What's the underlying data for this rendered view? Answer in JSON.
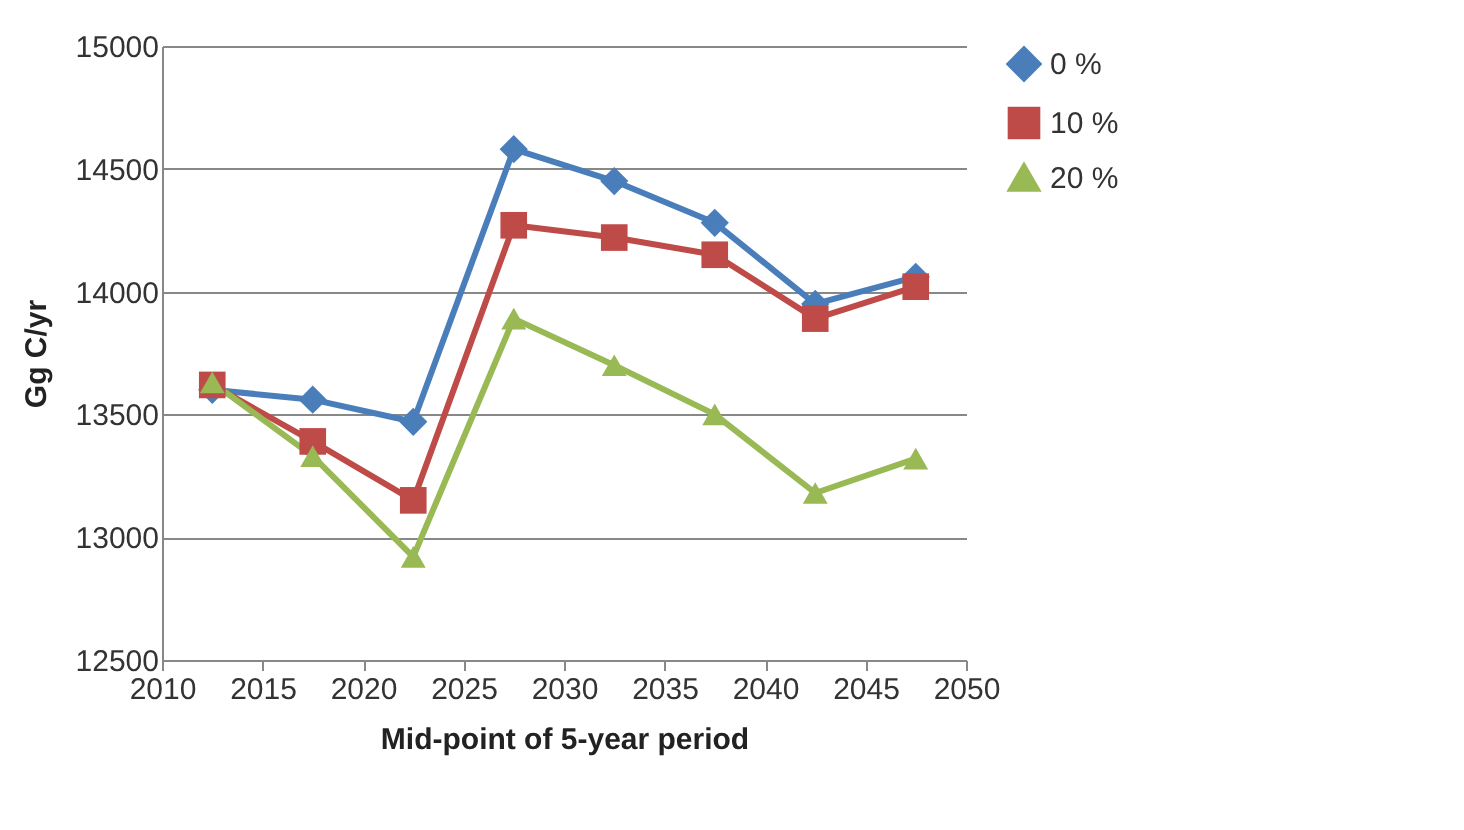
{
  "chart_data": {
    "type": "line",
    "xlabel": "Mid-point of 5-year period",
    "ylabel": "Gg C/yr",
    "x": [
      2012.5,
      2017.5,
      2022.5,
      2027.5,
      2032.5,
      2037.5,
      2042.5,
      2047.5
    ],
    "series": [
      {
        "name": "0 %",
        "color": "#4a7ebb",
        "marker": "diamond",
        "values": [
          13600,
          13560,
          13470,
          14580,
          14450,
          14280,
          13950,
          14060
        ]
      },
      {
        "name": "10 %",
        "color": "#be4b48",
        "marker": "square",
        "values": [
          13620,
          13390,
          13150,
          14270,
          14220,
          14150,
          13890,
          14020
        ]
      },
      {
        "name": "20 %",
        "color": "#98b954",
        "marker": "triangle",
        "values": [
          13630,
          13330,
          12920,
          13890,
          13700,
          13500,
          13180,
          13320
        ]
      }
    ],
    "xlim": [
      2010,
      2050
    ],
    "xticks": [
      2010,
      2015,
      2020,
      2025,
      2030,
      2035,
      2040,
      2045,
      2050
    ],
    "ylim": [
      12500,
      15000
    ],
    "yticks": [
      12500,
      13000,
      13500,
      14000,
      14500,
      15000
    ],
    "grid": "y",
    "legend": "right",
    "line_style": "solid"
  }
}
